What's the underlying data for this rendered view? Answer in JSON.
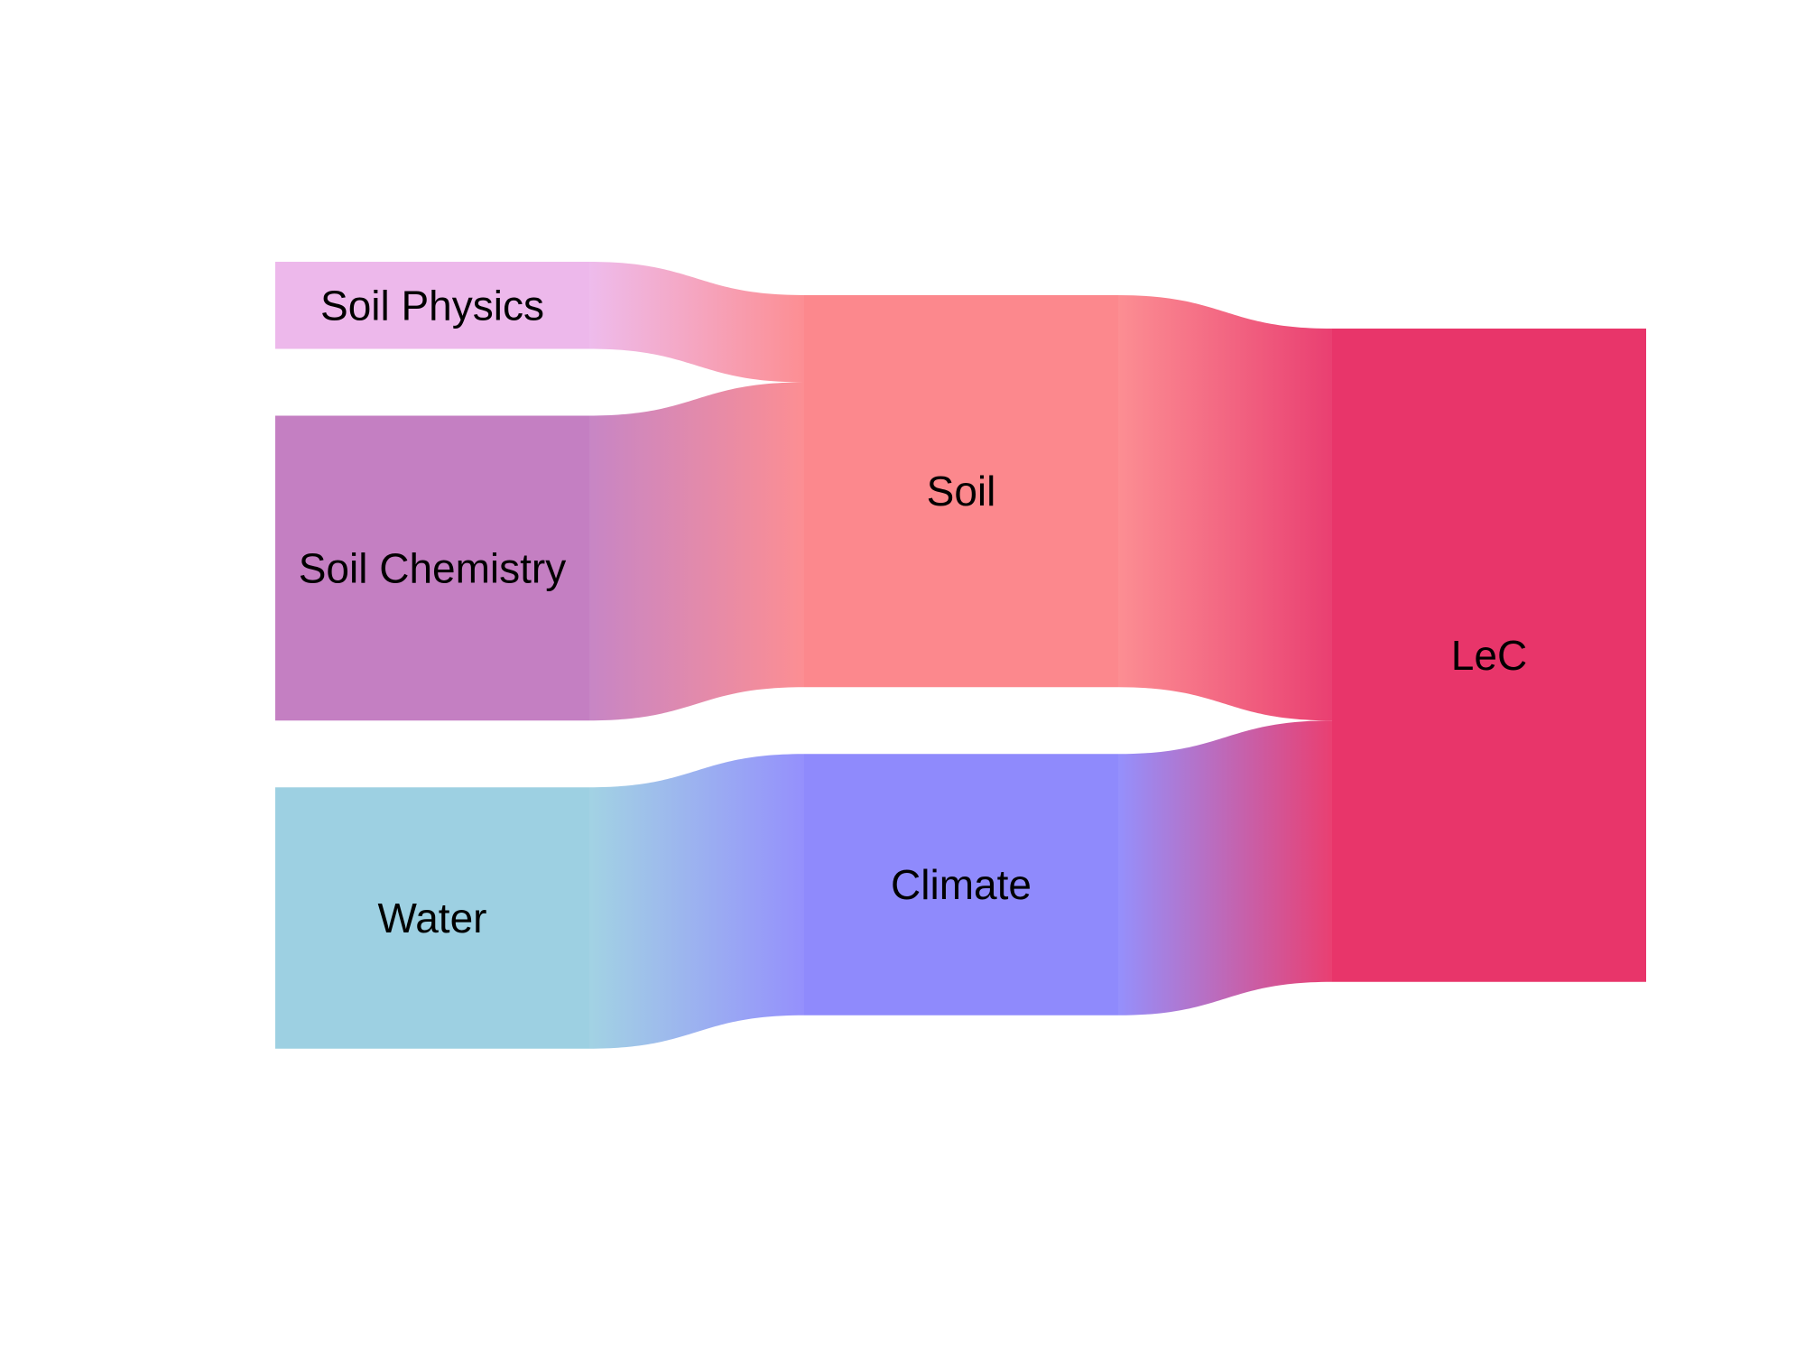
{
  "chart_data": {
    "type": "sankey",
    "title": "",
    "nodes": [
      {
        "id": "soil_physics",
        "label": "Soil Physics",
        "color": "#EDB8EB",
        "column": 0
      },
      {
        "id": "soil_chemistry",
        "label": "Soil Chemistry",
        "color": "#C47FC2",
        "column": 0
      },
      {
        "id": "water",
        "label": "Water",
        "color": "#9DD0E2",
        "column": 0
      },
      {
        "id": "soil",
        "label": "Soil",
        "color": "#FC888D",
        "column": 1
      },
      {
        "id": "climate",
        "label": "Climate",
        "color": "#8F8AFC",
        "column": 1
      },
      {
        "id": "lec",
        "label": "LeC",
        "color": "#E8356A",
        "column": 2
      }
    ],
    "links": [
      {
        "source": "soil_physics",
        "target": "soil",
        "value": 1
      },
      {
        "source": "soil_chemistry",
        "target": "soil",
        "value": 3.5
      },
      {
        "source": "water",
        "target": "climate",
        "value": 3
      },
      {
        "source": "soil",
        "target": "lec",
        "value": 4.5
      },
      {
        "source": "climate",
        "target": "lec",
        "value": 3
      }
    ]
  }
}
